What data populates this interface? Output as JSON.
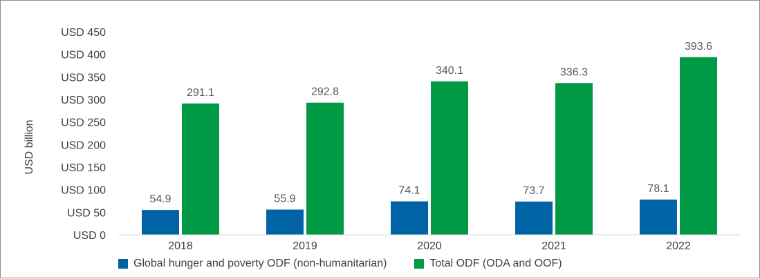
{
  "chart_data": {
    "type": "bar",
    "categories": [
      "2018",
      "2019",
      "2020",
      "2021",
      "2022"
    ],
    "series": [
      {
        "name": "Global hunger and poverty ODF (non-humanitarian)",
        "values": [
          54.9,
          55.9,
          74.1,
          73.7,
          78.1
        ],
        "color": "#0063a6"
      },
      {
        "name": "Total ODF (ODA and OOF)",
        "values": [
          291.1,
          292.8,
          340.1,
          336.3,
          393.6
        ],
        "color": "#009a44"
      }
    ],
    "ylabel": "USD billion",
    "yticks": [
      "USD 0",
      "USD 50",
      "USD 100",
      "USD 150",
      "USD 200",
      "USD 250",
      "USD 300",
      "USD 350",
      "USD 400",
      "USD 450"
    ],
    "ylim": [
      0,
      450
    ],
    "grid": false,
    "legend": "bottom"
  }
}
